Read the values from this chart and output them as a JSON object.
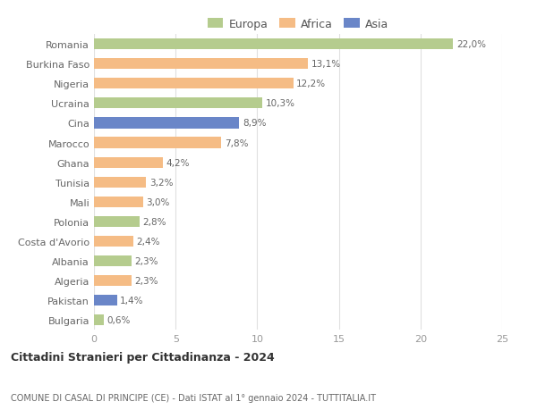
{
  "countries": [
    "Romania",
    "Burkina Faso",
    "Nigeria",
    "Ucraina",
    "Cina",
    "Marocco",
    "Ghana",
    "Tunisia",
    "Mali",
    "Polonia",
    "Costa d'Avorio",
    "Albania",
    "Algeria",
    "Pakistan",
    "Bulgaria"
  ],
  "values": [
    22.0,
    13.1,
    12.2,
    10.3,
    8.9,
    7.8,
    4.2,
    3.2,
    3.0,
    2.8,
    2.4,
    2.3,
    2.3,
    1.4,
    0.6
  ],
  "labels": [
    "22,0%",
    "13,1%",
    "12,2%",
    "10,3%",
    "8,9%",
    "7,8%",
    "4,2%",
    "3,2%",
    "3,0%",
    "2,8%",
    "2,4%",
    "2,3%",
    "2,3%",
    "1,4%",
    "0,6%"
  ],
  "continents": [
    "Europa",
    "Africa",
    "Africa",
    "Europa",
    "Asia",
    "Africa",
    "Africa",
    "Africa",
    "Africa",
    "Europa",
    "Africa",
    "Europa",
    "Africa",
    "Asia",
    "Europa"
  ],
  "colors": {
    "Europa": "#b5cc8e",
    "Africa": "#f5bc85",
    "Asia": "#6a86c8"
  },
  "title1": "Cittadini Stranieri per Cittadinanza - 2024",
  "title2": "COMUNE DI CASAL DI PRINCIPE (CE) - Dati ISTAT al 1° gennaio 2024 - TUTTITALIA.IT",
  "xlim": [
    0,
    25
  ],
  "xticks": [
    0,
    5,
    10,
    15,
    20,
    25
  ],
  "bg_color": "#ffffff",
  "grid_color": "#e0e0e0",
  "bar_height": 0.55
}
